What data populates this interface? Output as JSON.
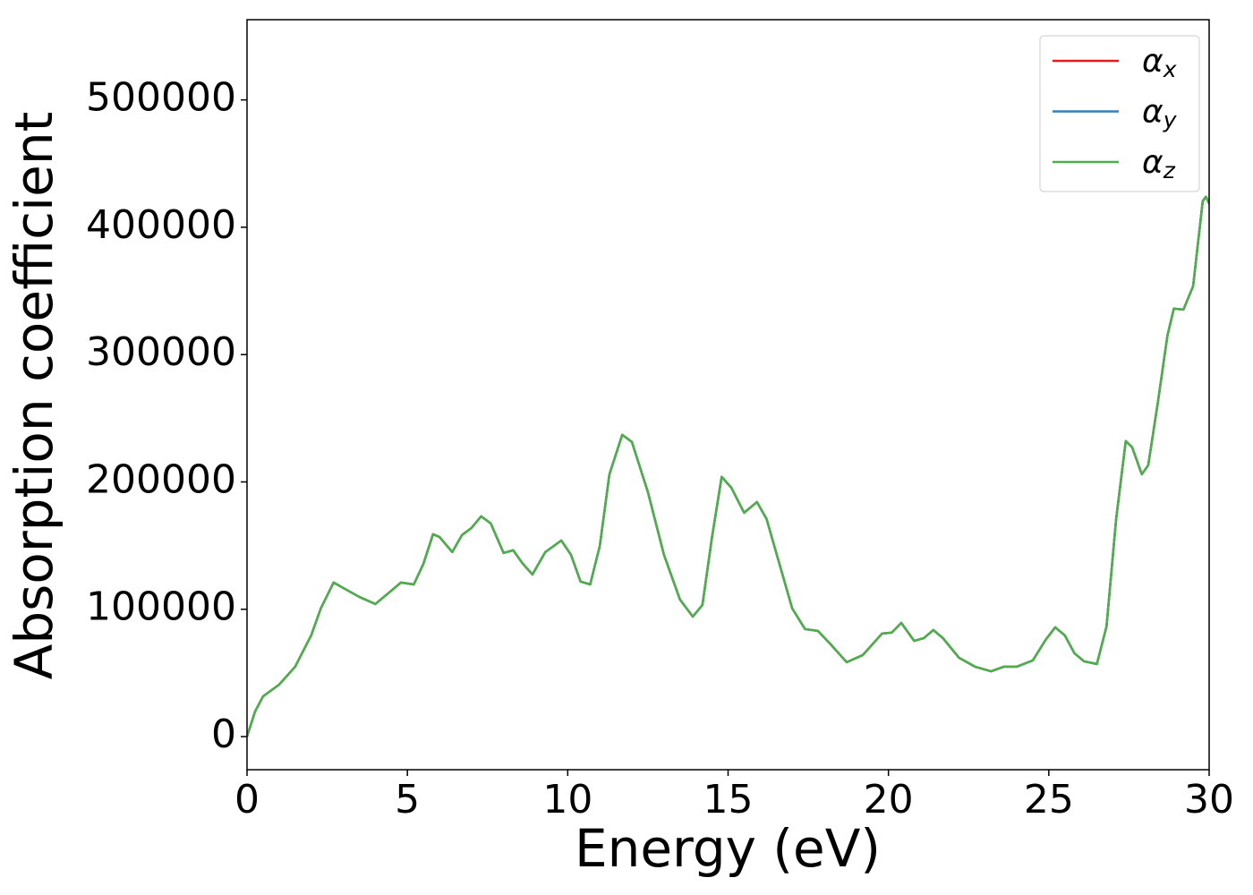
{
  "chart_data": {
    "type": "line",
    "xlabel": "Energy (eV)",
    "ylabel": "Absorption coefficient",
    "x": [
      0,
      0.25,
      0.5,
      1.0,
      1.5,
      2.0,
      2.3,
      2.7,
      3.0,
      3.5,
      4.0,
      4.5,
      4.8,
      5.2,
      5.5,
      5.8,
      6.0,
      6.4,
      6.7,
      7.0,
      7.3,
      7.6,
      8.0,
      8.3,
      8.6,
      8.9,
      9.3,
      9.8,
      10.1,
      10.4,
      10.7,
      11.0,
      11.3,
      11.7,
      12.0,
      12.5,
      13.0,
      13.5,
      13.9,
      14.2,
      14.5,
      14.8,
      15.1,
      15.5,
      15.9,
      16.2,
      16.6,
      17.0,
      17.4,
      17.8,
      18.2,
      18.7,
      19.2,
      19.8,
      20.1,
      20.4,
      20.8,
      21.1,
      21.4,
      21.7,
      22.2,
      22.7,
      23.2,
      23.6,
      24.0,
      24.5,
      24.9,
      25.2,
      25.5,
      25.8,
      26.1,
      26.5,
      26.8,
      27.1,
      27.4,
      27.6,
      27.9,
      28.1,
      28.4,
      28.7,
      28.9,
      29.2,
      29.5,
      29.8,
      29.9,
      30.0
    ],
    "series": [
      {
        "name": "αx",
        "color": "#e41a1c",
        "values": [
          0,
          19700,
          31600,
          40800,
          54900,
          79500,
          100600,
          121000,
          116700,
          109700,
          104100,
          114600,
          121000,
          119500,
          135700,
          158900,
          156800,
          144900,
          158200,
          163900,
          173000,
          167400,
          144200,
          146300,
          135700,
          127300,
          144900,
          154000,
          142800,
          121700,
          119500,
          149800,
          206000,
          237000,
          231400,
          192000,
          142800,
          107600,
          94200,
          103400,
          156800,
          204000,
          195500,
          175800,
          184200,
          170900,
          135700,
          100600,
          84400,
          83000,
          72400,
          58400,
          64000,
          80900,
          81600,
          89300,
          75200,
          77300,
          83700,
          77300,
          61900,
          54900,
          51300,
          54900,
          54900,
          59800,
          75900,
          85800,
          79500,
          65400,
          59100,
          57000,
          86500,
          170900,
          232100,
          227100,
          206000,
          213100,
          262300,
          315000,
          336100,
          335400,
          353700,
          420500,
          424000,
          418400
        ]
      },
      {
        "name": "αy",
        "color": "#377eb8",
        "values": [
          0,
          19700,
          31600,
          40800,
          54900,
          79500,
          100600,
          121000,
          116700,
          109700,
          104100,
          114600,
          121000,
          119500,
          135700,
          158900,
          156800,
          144900,
          158200,
          163900,
          173000,
          167400,
          144200,
          146300,
          135700,
          127300,
          144900,
          154000,
          142800,
          121700,
          119500,
          149800,
          206000,
          237000,
          231400,
          192000,
          142800,
          107600,
          94200,
          103400,
          156800,
          204000,
          195500,
          175800,
          184200,
          170900,
          135700,
          100600,
          84400,
          83000,
          72400,
          58400,
          64000,
          80900,
          81600,
          89300,
          75200,
          77300,
          83700,
          77300,
          61900,
          54900,
          51300,
          54900,
          54900,
          59800,
          75900,
          85800,
          79500,
          65400,
          59100,
          57000,
          86500,
          170900,
          232100,
          227100,
          206000,
          213100,
          262300,
          315000,
          336100,
          335400,
          353700,
          420500,
          424000,
          418400
        ]
      },
      {
        "name": "αz",
        "color": "#4daf4a",
        "values": [
          0,
          19700,
          31600,
          40800,
          54900,
          79500,
          100600,
          121000,
          116700,
          109700,
          104100,
          114600,
          121000,
          119500,
          135700,
          158900,
          156800,
          144900,
          158200,
          163900,
          173000,
          167400,
          144200,
          146300,
          135700,
          127300,
          144900,
          154000,
          142800,
          121700,
          119500,
          149800,
          206000,
          237000,
          231400,
          192000,
          142800,
          107600,
          94200,
          103400,
          156800,
          204000,
          195500,
          175800,
          184200,
          170900,
          135700,
          100600,
          84400,
          83000,
          72400,
          58400,
          64000,
          80900,
          81600,
          89300,
          75200,
          77300,
          83700,
          77300,
          61900,
          54900,
          51300,
          54900,
          54900,
          59800,
          75900,
          85800,
          79500,
          65400,
          59100,
          57000,
          86500,
          170900,
          232100,
          227100,
          206000,
          213100,
          262300,
          315000,
          336100,
          335400,
          353700,
          420500,
          424000,
          418400
        ]
      }
    ],
    "xlim": [
      0,
      30
    ],
    "xticks": [
      0,
      5,
      10,
      15,
      20,
      25,
      30
    ],
    "ylim": [
      -26000,
      563000
    ],
    "yticks": [
      0,
      100000,
      200000,
      300000,
      400000,
      500000
    ],
    "legend": "upper right"
  }
}
